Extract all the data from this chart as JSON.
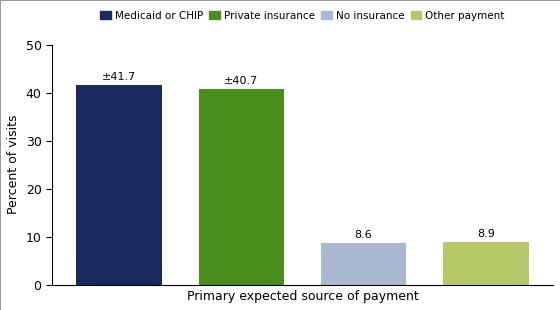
{
  "categories": [
    "Medicaid or CHIP",
    "Private insurance",
    "No insurance",
    "Other payment"
  ],
  "values": [
    41.7,
    40.7,
    8.6,
    8.9
  ],
  "bar_colors": [
    "#1a2a5e",
    "#4a8c1e",
    "#a8b8d0",
    "#b5c96a"
  ],
  "labels": [
    "±41.7",
    "±40.7",
    "8.6",
    "8.9"
  ],
  "xlabel": "Primary expected source of payment",
  "ylabel": "Percent of visits",
  "ylim": [
    0,
    50
  ],
  "yticks": [
    0,
    10,
    20,
    30,
    40,
    50
  ],
  "legend_labels": [
    "Medicaid or CHIP",
    "Private insurance",
    "No insurance",
    "Other payment"
  ],
  "legend_colors": [
    "#1a2a5e",
    "#4a8c1e",
    "#a8b8d0",
    "#b5c96a"
  ],
  "bar_width": 0.7,
  "fig_width": 5.6,
  "fig_height": 3.1,
  "dpi": 100
}
